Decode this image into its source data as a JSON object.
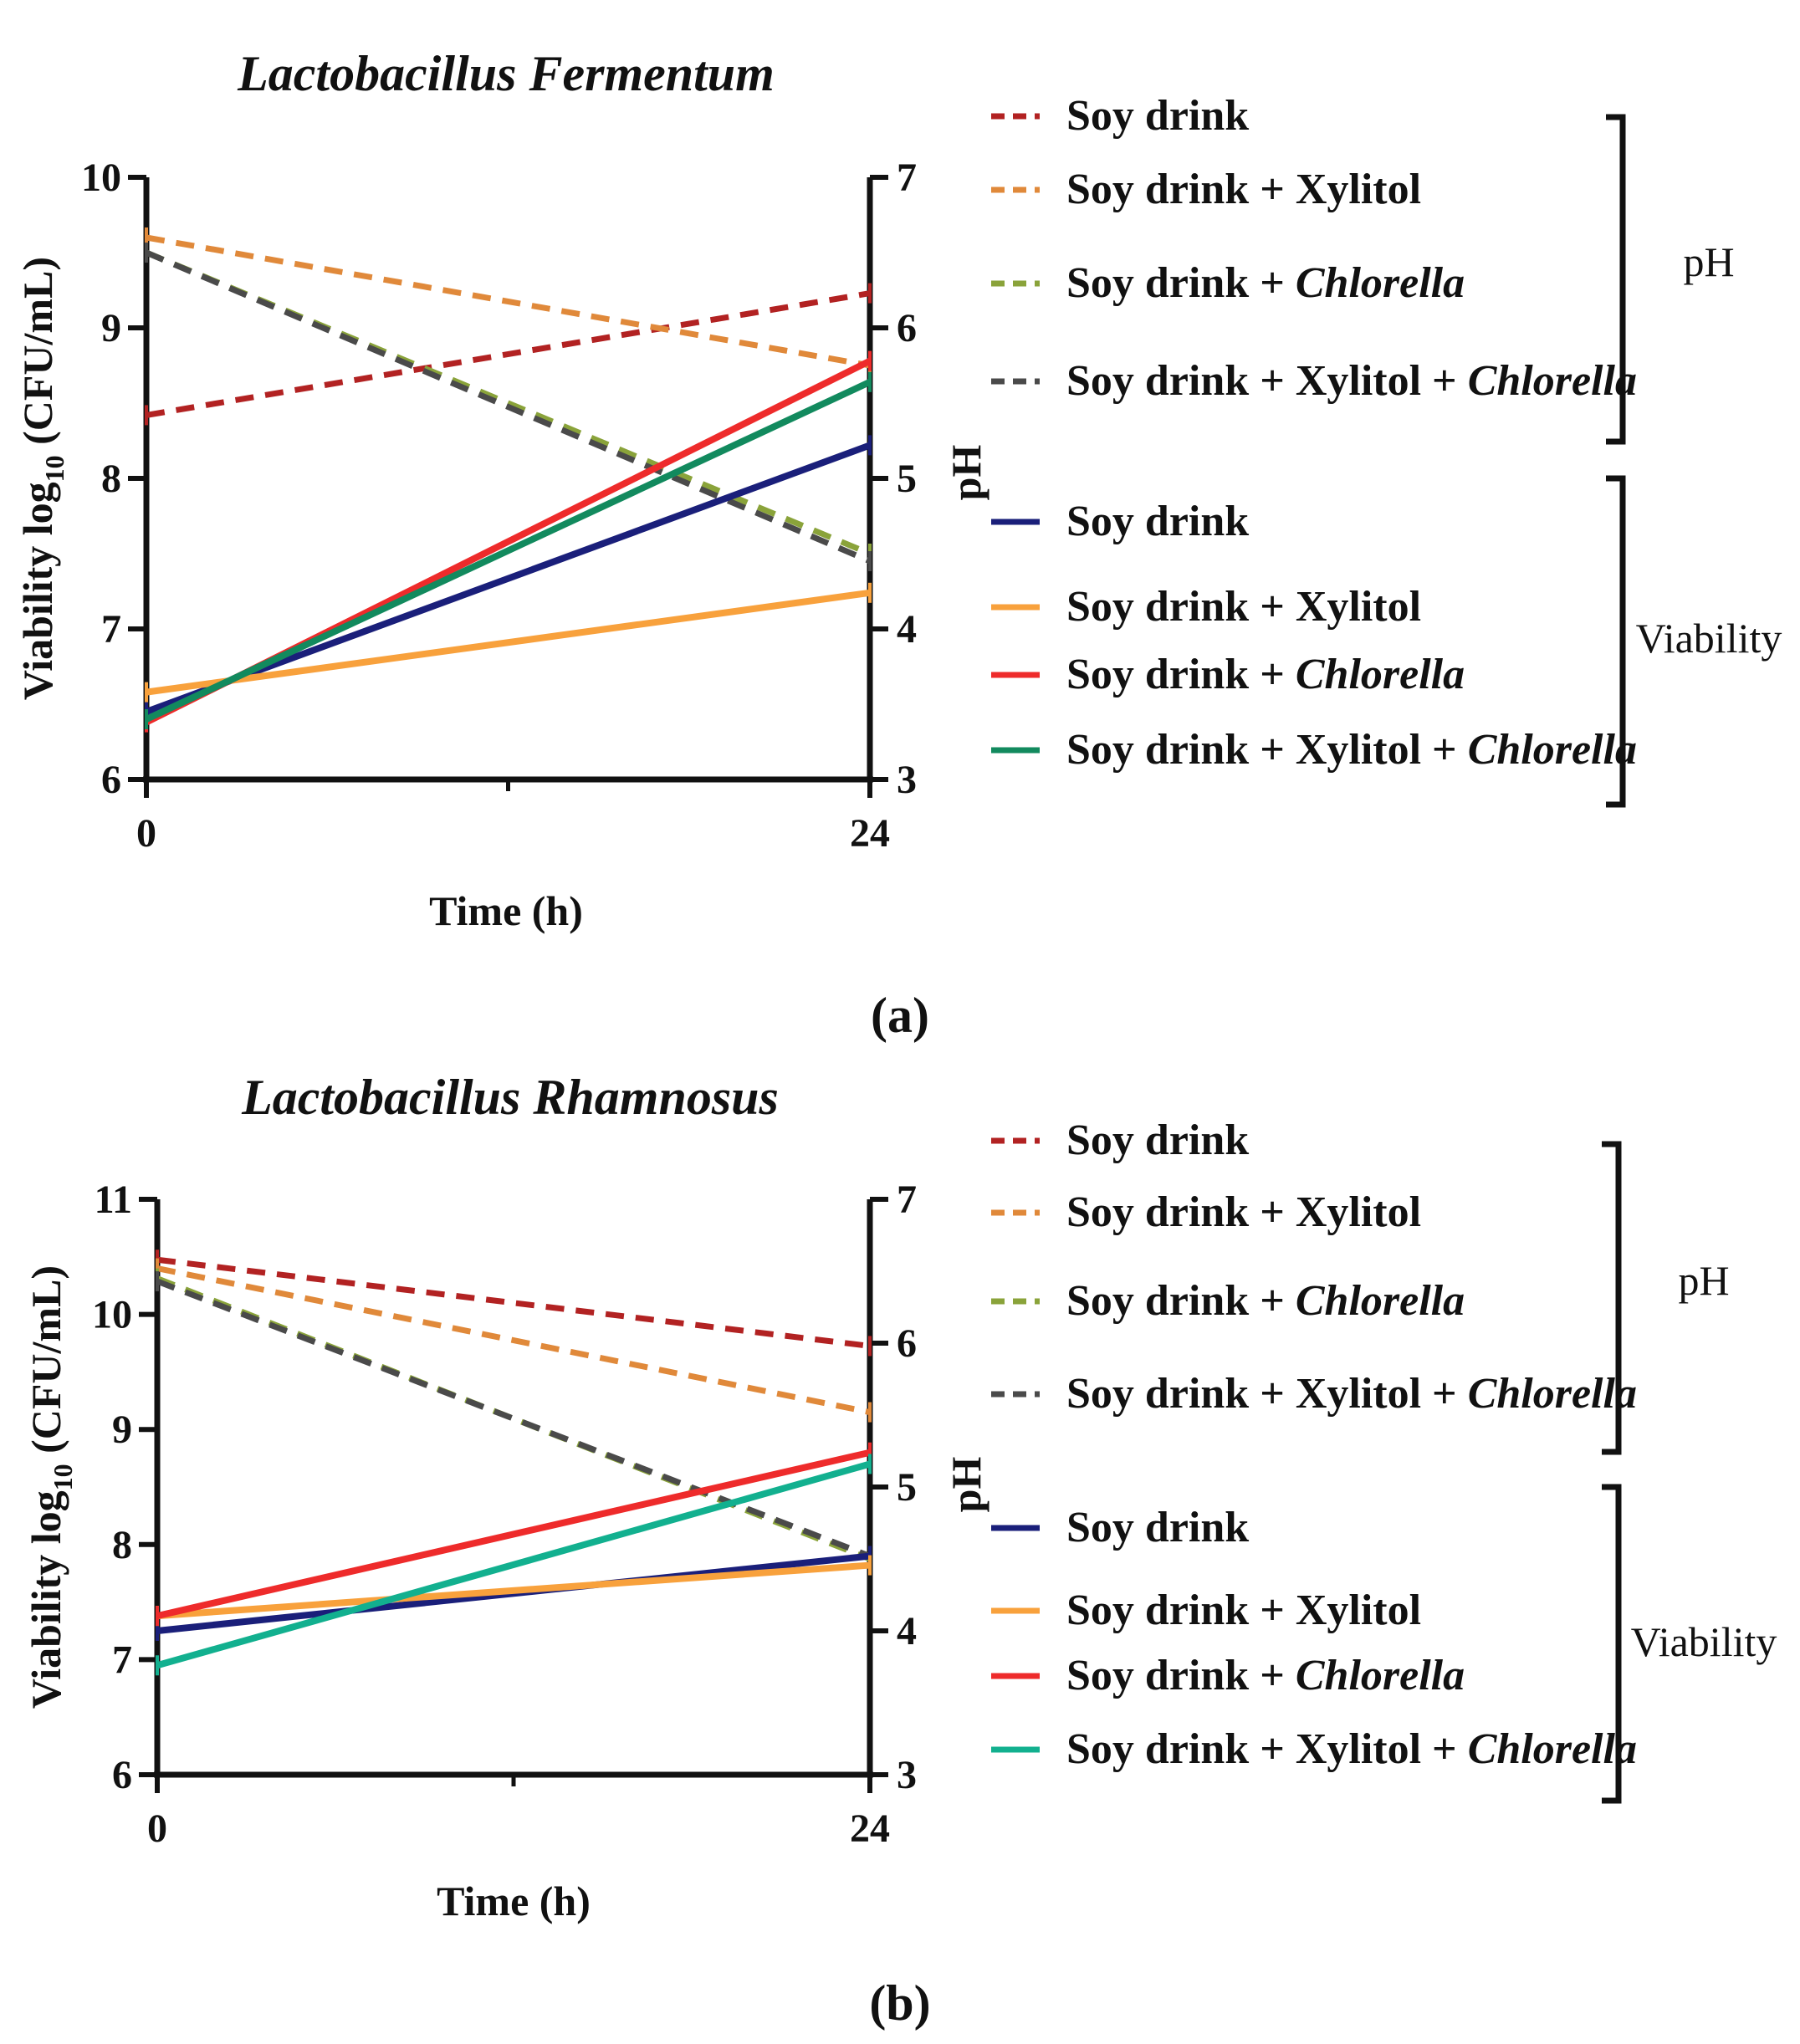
{
  "figure": {
    "panels": [
      "(a)",
      "(b)"
    ],
    "group_labels": {
      "ph": "pH",
      "viability": "Viability"
    }
  },
  "series_legend": [
    {
      "key": "sd",
      "parts": [
        {
          "t": "Soy drink",
          "i": false
        }
      ]
    },
    {
      "key": "sdx",
      "parts": [
        {
          "t": "Soy drink + Xylitol",
          "i": false
        }
      ]
    },
    {
      "key": "sdc",
      "parts": [
        {
          "t": "Soy drink + ",
          "i": false
        },
        {
          "t": "Chlorella",
          "i": true
        }
      ]
    },
    {
      "key": "sdxc",
      "parts": [
        {
          "t": "Soy drink + Xylitol + ",
          "i": false
        },
        {
          "t": "Chlorella",
          "i": true
        }
      ]
    }
  ],
  "colors": {
    "ph": [
      "#b22222",
      "#e0893a",
      "#8aa33a",
      "#4a4a4a"
    ],
    "viability_a": [
      "#1a1f7a",
      "#f8a13c",
      "#ee2b2b",
      "#128a5e"
    ],
    "viability_b": [
      "#1a1f7a",
      "#f8a13c",
      "#ee2b2b",
      "#12b08f"
    ]
  },
  "chart_data": [
    {
      "type": "line",
      "title": "Lactobacillus Fermentum",
      "xlabel": "Time (h)",
      "ylabel": "Viability log10 (CFU/mL)",
      "ylabel_main": "Viability log",
      "ylabel_sub": "10",
      "ylabel_tail": " (CFU/mL)",
      "y2label": "pH",
      "x": [
        0,
        24
      ],
      "xticks": [
        "0",
        "24"
      ],
      "ylim": [
        6,
        10
      ],
      "yticks": [
        "6",
        "7",
        "8",
        "9",
        "10"
      ],
      "y2lim": [
        3,
        7
      ],
      "y2ticks": [
        "3",
        "4",
        "5",
        "6",
        "7"
      ],
      "ph_series": [
        {
          "name": "Soy drink",
          "values": [
            5.42,
            6.23
          ]
        },
        {
          "name": "Soy drink + Xylitol",
          "values": [
            6.6,
            5.75
          ]
        },
        {
          "name": "Soy drink + Chlorella",
          "values": [
            6.5,
            4.5
          ]
        },
        {
          "name": "Soy drink + Xylitol + Chlorella",
          "values": [
            6.5,
            4.45
          ]
        }
      ],
      "viability_series": [
        {
          "name": "Soy drink",
          "values": [
            6.45,
            8.22
          ]
        },
        {
          "name": "Soy drink + Xylitol",
          "values": [
            6.58,
            7.24
          ]
        },
        {
          "name": "Soy drink + Chlorella",
          "values": [
            6.38,
            8.78
          ]
        },
        {
          "name": "Soy drink + Xylitol + Chlorella",
          "values": [
            6.4,
            8.64
          ]
        }
      ]
    },
    {
      "type": "line",
      "title": "Lactobacillus Rhamnosus",
      "xlabel": "Time (h)",
      "ylabel": "Viability log10 (CFU/mL)",
      "ylabel_main": "Viability log",
      "ylabel_sub": "10",
      "ylabel_tail": " (CFU/mL)",
      "y2label": "pH",
      "x": [
        0,
        24
      ],
      "xticks": [
        "0",
        "24"
      ],
      "ylim": [
        6,
        11
      ],
      "yticks": [
        "6",
        "7",
        "8",
        "9",
        "10",
        "11"
      ],
      "y2lim": [
        3,
        7
      ],
      "y2ticks": [
        "3",
        "4",
        "5",
        "6",
        "7"
      ],
      "ph_series": [
        {
          "name": "Soy drink",
          "values": [
            6.58,
            5.98
          ]
        },
        {
          "name": "Soy drink + Xylitol",
          "values": [
            6.52,
            5.52
          ]
        },
        {
          "name": "Soy drink + Chlorella",
          "values": [
            6.45,
            4.5
          ]
        },
        {
          "name": "Soy drink + Xylitol + Chlorella",
          "values": [
            6.43,
            4.52
          ]
        }
      ],
      "viability_series": [
        {
          "name": "Soy drink",
          "values": [
            7.25,
            7.9
          ]
        },
        {
          "name": "Soy drink + Xylitol",
          "values": [
            7.38,
            7.82
          ]
        },
        {
          "name": "Soy drink + Chlorella",
          "values": [
            7.38,
            8.8
          ]
        },
        {
          "name": "Soy drink + Xylitol + Chlorella",
          "values": [
            6.95,
            8.7
          ]
        }
      ]
    }
  ]
}
